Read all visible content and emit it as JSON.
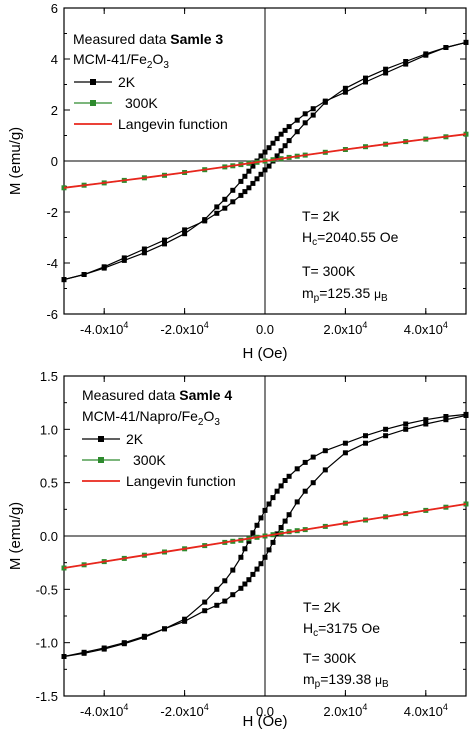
{
  "chart_data": [
    {
      "type": "line",
      "title_prefix": "Measured data ",
      "title_bold": "Samle 3",
      "subtitle_main": "MCM-41/Fe",
      "subtitle_sub": "2",
      "subtitle_main2": "O",
      "subtitle_sub2": "3",
      "xlabel": "H (Oe)",
      "ylabel": "M (emu/g)",
      "xlim": [
        -50000,
        50000
      ],
      "ylim": [
        -6,
        6
      ],
      "x_ticks": [
        -40000,
        -20000,
        0,
        20000,
        40000
      ],
      "x_tick_labels": [
        {
          "mant": "-4.0x10",
          "exp": "4"
        },
        {
          "mant": "-2.0x10",
          "exp": "4"
        },
        {
          "mant": "0.0",
          "exp": ""
        },
        {
          "mant": "2.0x10",
          "exp": "4"
        },
        {
          "mant": "4.0x10",
          "exp": "4"
        }
      ],
      "y_ticks": [
        -6,
        -4,
        -2,
        0,
        2,
        4,
        6
      ],
      "y_tick_labels": [
        "-6",
        "-4",
        "-2",
        "0",
        "2",
        "4",
        "6"
      ],
      "legend": [
        "2K",
        "300K",
        "Langevin function"
      ],
      "legend_placement": "top-left",
      "series": [
        {
          "name": "2K",
          "color": "#000000",
          "marker": "square",
          "x": [
            -50000,
            -45000,
            -40000,
            -35000,
            -30000,
            -25000,
            -20000,
            -15000,
            -12000,
            -10000,
            -8000,
            -6000,
            -5000,
            -4000,
            -3000,
            -2000,
            -1000,
            0,
            1000,
            2000,
            3000,
            4000,
            5000,
            6000,
            8000,
            10000,
            12000,
            15000,
            20000,
            25000,
            30000,
            35000,
            40000,
            45000,
            50000
          ],
          "y_upper": [
            -4.65,
            -4.45,
            -4.2,
            -3.9,
            -3.6,
            -3.25,
            -2.85,
            -2.3,
            -1.8,
            -1.5,
            -1.15,
            -0.8,
            -0.6,
            -0.4,
            -0.2,
            0.0,
            0.2,
            0.35,
            0.52,
            0.7,
            0.88,
            1.05,
            1.2,
            1.35,
            1.6,
            1.85,
            2.05,
            2.35,
            2.7,
            3.1,
            3.45,
            3.8,
            4.15,
            4.45,
            4.65
          ],
          "y_lower": [
            -4.65,
            -4.45,
            -4.15,
            -3.8,
            -3.45,
            -3.1,
            -2.7,
            -2.35,
            -2.05,
            -1.85,
            -1.6,
            -1.35,
            -1.2,
            -1.05,
            -0.88,
            -0.7,
            -0.52,
            -0.35,
            -0.2,
            0.0,
            0.2,
            0.4,
            0.6,
            0.8,
            1.15,
            1.5,
            1.8,
            2.3,
            2.85,
            3.25,
            3.6,
            3.9,
            4.2,
            4.45,
            4.65
          ]
        },
        {
          "name": "300K",
          "color": "#2e8b2e",
          "marker": "square",
          "x": [
            -50000,
            -45000,
            -40000,
            -35000,
            -30000,
            -25000,
            -20000,
            -15000,
            -10000,
            -8000,
            -6000,
            -4000,
            -2000,
            0,
            2000,
            4000,
            6000,
            8000,
            10000,
            15000,
            20000,
            25000,
            30000,
            35000,
            40000,
            45000,
            50000
          ],
          "y": [
            -1.05,
            -0.95,
            -0.86,
            -0.76,
            -0.66,
            -0.56,
            -0.45,
            -0.34,
            -0.23,
            -0.19,
            -0.14,
            -0.09,
            -0.05,
            0.0,
            0.05,
            0.09,
            0.14,
            0.19,
            0.23,
            0.34,
            0.45,
            0.56,
            0.66,
            0.76,
            0.86,
            0.95,
            1.05
          ]
        },
        {
          "name": "Langevin function",
          "color": "#e8261c",
          "marker": "none",
          "x": [
            -50000,
            -40000,
            -30000,
            -20000,
            -10000,
            0,
            10000,
            20000,
            30000,
            40000,
            50000
          ],
          "y": [
            -1.05,
            -0.86,
            -0.66,
            -0.45,
            -0.23,
            0.0,
            0.23,
            0.45,
            0.66,
            0.86,
            1.05
          ]
        }
      ],
      "annotations": {
        "t1": "T= 2K",
        "hc_main": "H",
        "hc_sub": "c",
        "hc_value": "=2040.55 Oe",
        "t2": "T= 300K",
        "mp_main": "m",
        "mp_sub": "p",
        "mp_value": "=125.35 ",
        "mu_main": "μ",
        "mu_sub": "B"
      }
    },
    {
      "type": "line",
      "title_prefix": "Measured data ",
      "title_bold": "Samle 4",
      "subtitle_main": "MCM-41/Napro/Fe",
      "subtitle_sub": "2",
      "subtitle_main2": "O",
      "subtitle_sub2": "3",
      "xlabel": "H (Oe)",
      "ylabel": "M (emu/g)",
      "xlim": [
        -50000,
        50000
      ],
      "ylim": [
        -1.5,
        1.5
      ],
      "x_ticks": [
        -40000,
        -20000,
        0,
        20000,
        40000
      ],
      "x_tick_labels": [
        {
          "mant": "-4.0x10",
          "exp": "4"
        },
        {
          "mant": "-2.0x10",
          "exp": "4"
        },
        {
          "mant": "0.0",
          "exp": ""
        },
        {
          "mant": "2.0x10",
          "exp": "4"
        },
        {
          "mant": "4.0x10",
          "exp": "4"
        }
      ],
      "y_ticks": [
        -1.5,
        -1.0,
        -0.5,
        0.0,
        0.5,
        1.0,
        1.5
      ],
      "y_tick_labels": [
        "-1.5",
        "-1.0",
        "-0.5",
        "0.0",
        "0.5",
        "1.0",
        "1.5"
      ],
      "legend": [
        "2K",
        "300K",
        "Langevin function"
      ],
      "legend_placement": "top-left",
      "series": [
        {
          "name": "2K",
          "color": "#000000",
          "marker": "square",
          "x": [
            -50000,
            -45000,
            -40000,
            -35000,
            -30000,
            -25000,
            -20000,
            -15000,
            -12000,
            -10000,
            -8000,
            -6000,
            -5000,
            -4000,
            -3000,
            -2000,
            -1000,
            0,
            1000,
            2000,
            3000,
            4000,
            5000,
            6000,
            8000,
            10000,
            12000,
            15000,
            20000,
            25000,
            30000,
            35000,
            40000,
            45000,
            50000
          ],
          "y_upper": [
            -1.13,
            -1.09,
            -1.05,
            -1.0,
            -0.94,
            -0.87,
            -0.78,
            -0.62,
            -0.5,
            -0.42,
            -0.32,
            -0.2,
            -0.12,
            -0.05,
            0.03,
            0.1,
            0.17,
            0.24,
            0.3,
            0.36,
            0.42,
            0.47,
            0.52,
            0.56,
            0.63,
            0.69,
            0.74,
            0.8,
            0.87,
            0.94,
            1.0,
            1.05,
            1.09,
            1.12,
            1.14
          ],
          "y_lower": [
            -1.13,
            -1.1,
            -1.06,
            -1.01,
            -0.95,
            -0.87,
            -0.8,
            -0.7,
            -0.65,
            -0.61,
            -0.55,
            -0.49,
            -0.45,
            -0.41,
            -0.36,
            -0.31,
            -0.26,
            -0.2,
            -0.13,
            -0.06,
            0.02,
            0.08,
            0.14,
            0.2,
            0.32,
            0.42,
            0.5,
            0.62,
            0.78,
            0.87,
            0.94,
            1.0,
            1.05,
            1.09,
            1.13
          ]
        },
        {
          "name": "300K",
          "color": "#2e8b2e",
          "marker": "square",
          "x": [
            -50000,
            -45000,
            -40000,
            -35000,
            -30000,
            -25000,
            -20000,
            -15000,
            -10000,
            -8000,
            -6000,
            -4000,
            -2000,
            0,
            2000,
            4000,
            6000,
            8000,
            10000,
            15000,
            20000,
            25000,
            30000,
            35000,
            40000,
            45000,
            50000
          ],
          "y": [
            -0.3,
            -0.27,
            -0.24,
            -0.21,
            -0.18,
            -0.15,
            -0.12,
            -0.09,
            -0.06,
            -0.05,
            -0.04,
            -0.025,
            -0.012,
            0.0,
            0.012,
            0.025,
            0.04,
            0.05,
            0.06,
            0.09,
            0.12,
            0.15,
            0.18,
            0.21,
            0.24,
            0.27,
            0.3
          ]
        },
        {
          "name": "Langevin function",
          "color": "#e8261c",
          "marker": "none",
          "x": [
            -50000,
            -40000,
            -30000,
            -20000,
            -10000,
            0,
            10000,
            20000,
            30000,
            40000,
            50000
          ],
          "y": [
            -0.3,
            -0.24,
            -0.18,
            -0.12,
            -0.06,
            0.0,
            0.06,
            0.12,
            0.18,
            0.24,
            0.3
          ]
        }
      ],
      "annotations": {
        "t1": "T= 2K",
        "hc_main": "H",
        "hc_sub": "c",
        "hc_value": "=3175 Oe",
        "t2": "T= 300K",
        "mp_main": "m",
        "mp_sub": "p",
        "mp_value": "=139.38 ",
        "mu_main": "μ",
        "mu_sub": "B"
      }
    }
  ]
}
